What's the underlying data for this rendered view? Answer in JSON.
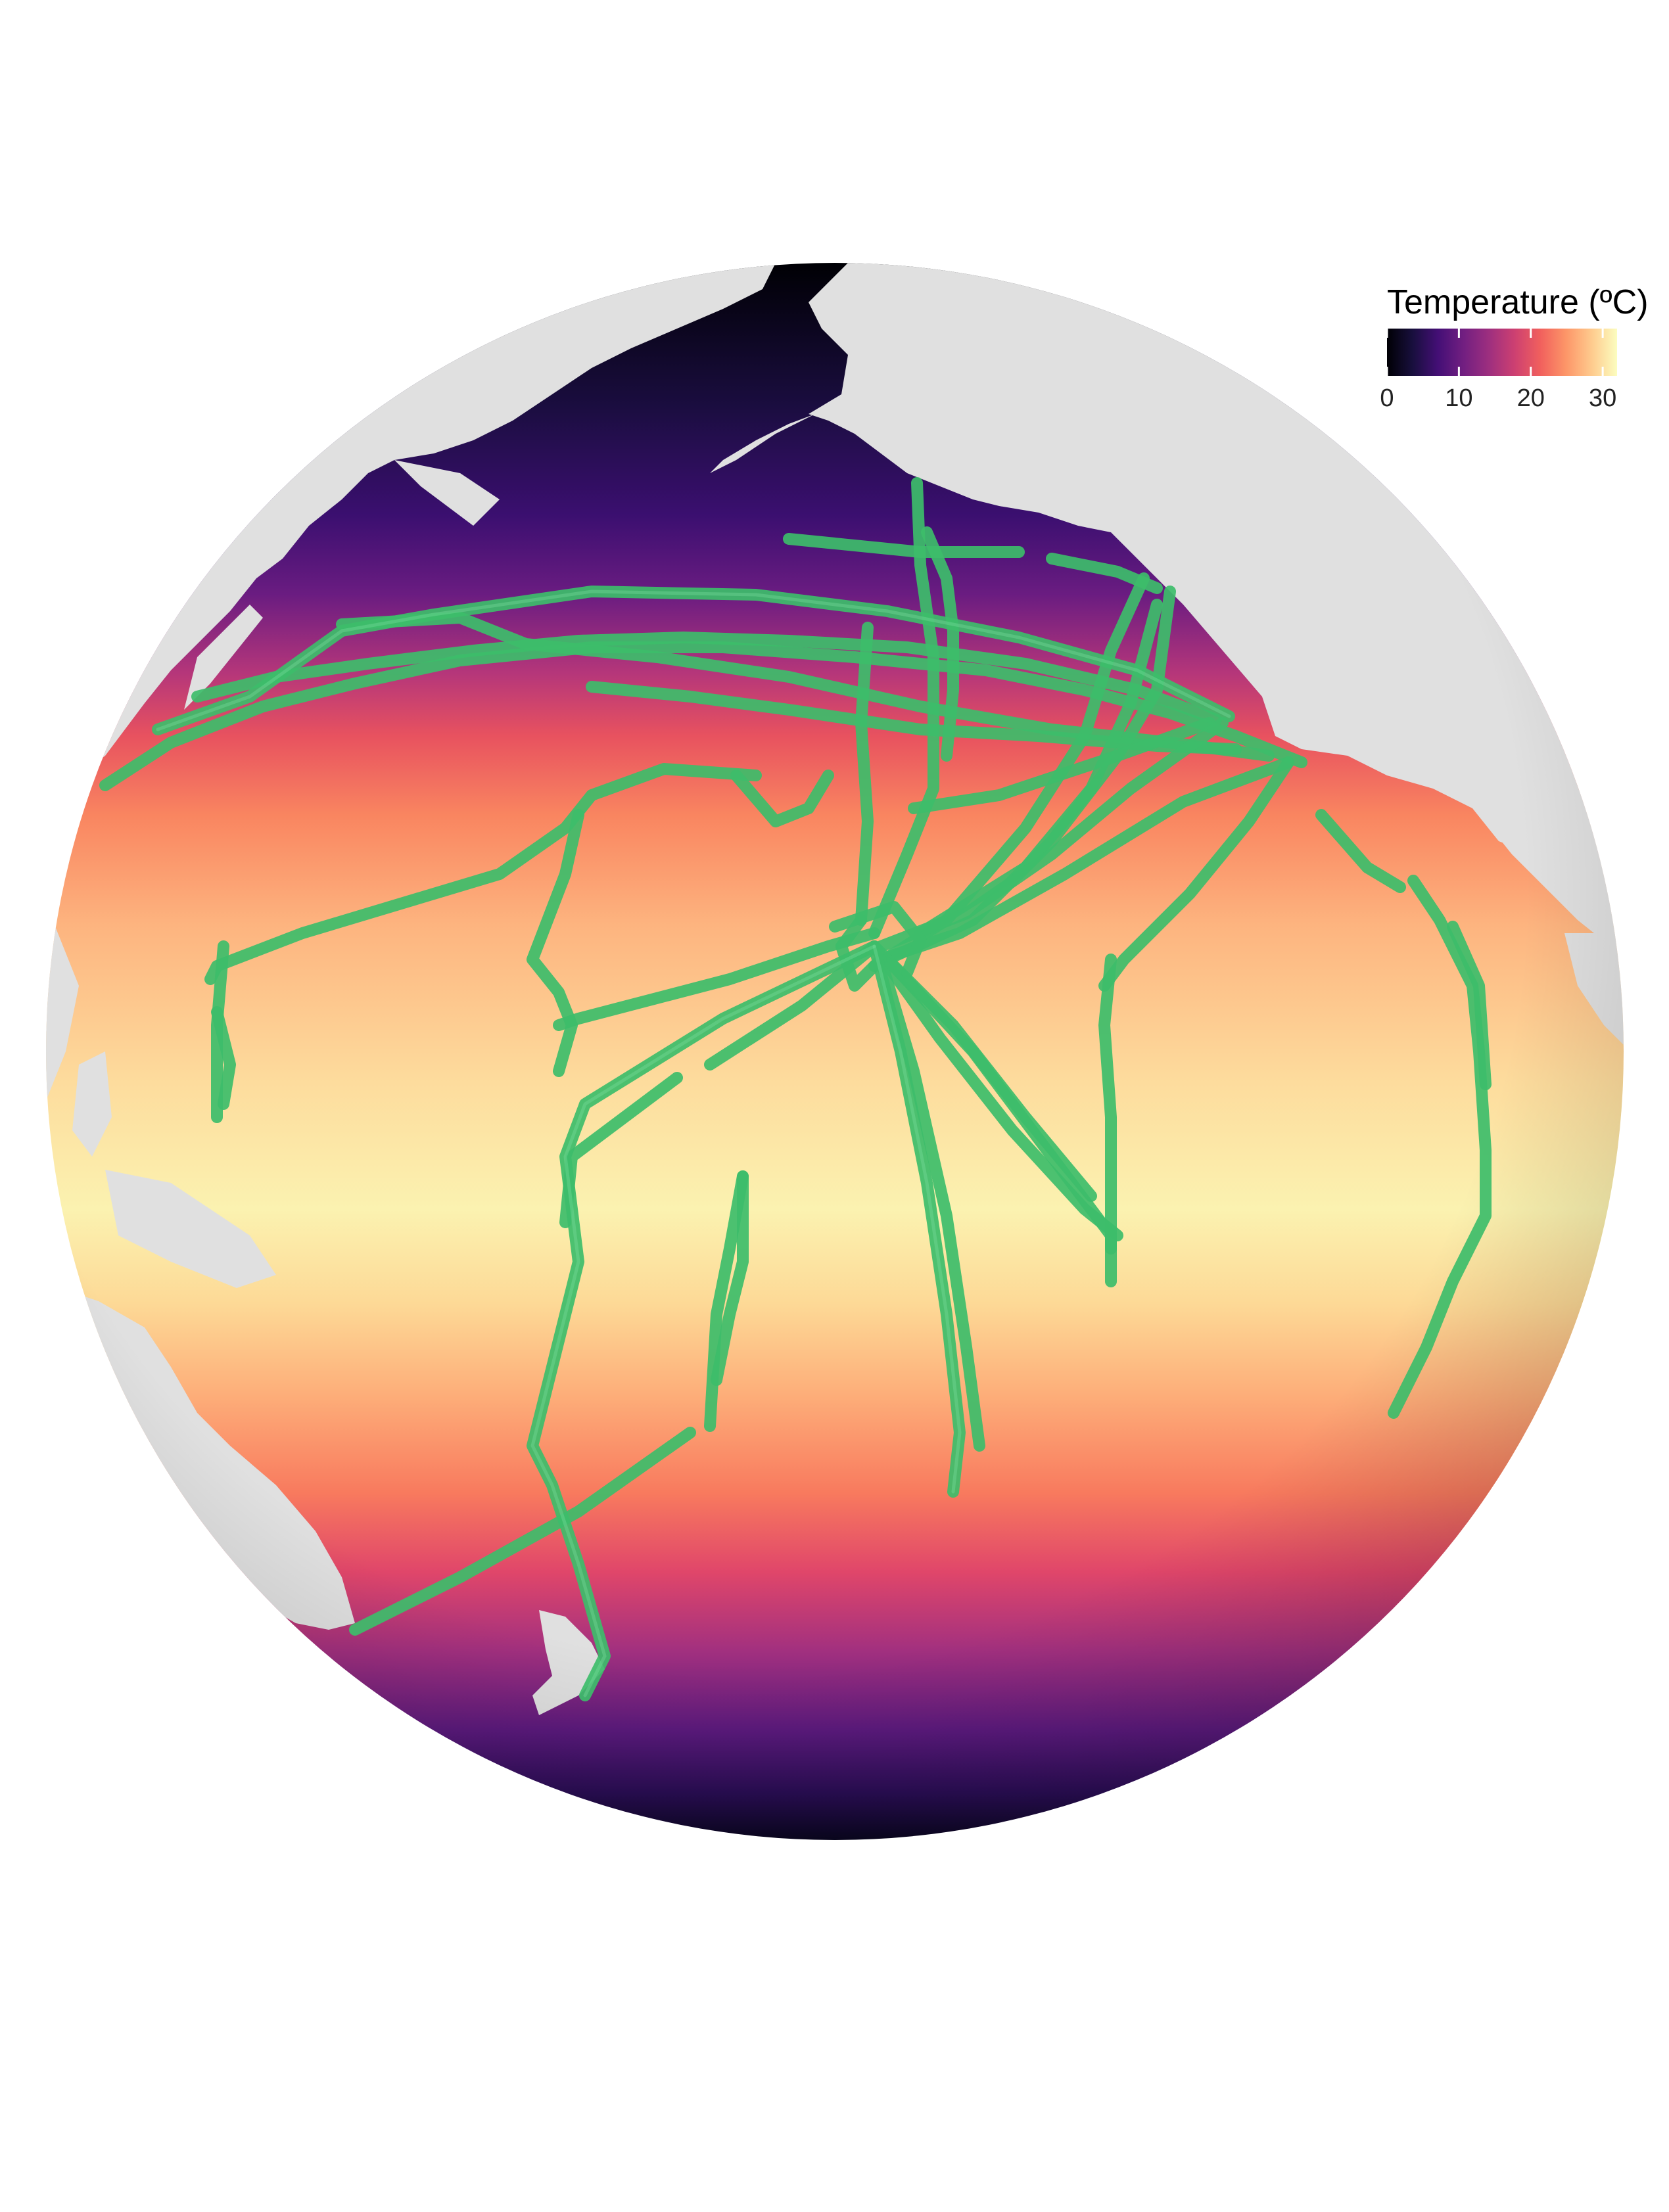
{
  "legend": {
    "title": "Temperature (ºC)",
    "ticks": [
      {
        "value": 0,
        "label": "0"
      },
      {
        "value": 10,
        "label": "10"
      },
      {
        "value": 20,
        "label": "20"
      },
      {
        "value": 30,
        "label": "30"
      }
    ],
    "range": [
      0,
      32
    ],
    "colormap": [
      "#000004",
      "#180f3d",
      "#440f76",
      "#721f81",
      "#9e2f7f",
      "#cd4071",
      "#f1605d",
      "#fd9668",
      "#feca8d",
      "#fcfdbf"
    ]
  },
  "map": {
    "projection": "orthographic",
    "view_center": {
      "lon": -160,
      "lat": 10
    },
    "land_color": "#e0e0e0",
    "track_color": "#3dbd6a",
    "background": "#ffffff"
  }
}
